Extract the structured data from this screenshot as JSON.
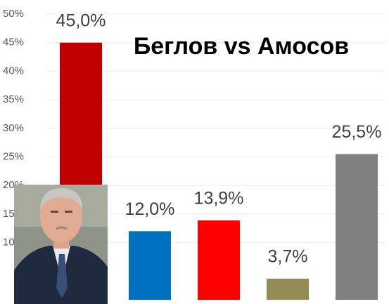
{
  "chart_data": {
    "type": "bar",
    "title": "Беглов vs Амосов",
    "categories": [
      null,
      null,
      null,
      null,
      null
    ],
    "values": [
      45.0,
      12.0,
      13.9,
      3.7,
      25.5
    ],
    "value_labels": [
      "45,0%",
      "12,0%",
      "13,9%",
      "3,7%",
      "25,5%"
    ],
    "colors": [
      "#c00000",
      "#0070c0",
      "#ff0000",
      "#948a54",
      "#808080"
    ],
    "ylim": [
      0,
      50
    ],
    "yticks": [
      {
        "value": 10,
        "label": "10%"
      },
      {
        "value": 15,
        "label": "15%"
      },
      {
        "value": 20,
        "label": "20%"
      },
      {
        "value": 25,
        "label": "25%"
      },
      {
        "value": 30,
        "label": "30%"
      },
      {
        "value": 35,
        "label": "35%"
      },
      {
        "value": 40,
        "label": "40%"
      },
      {
        "value": 45,
        "label": "45%"
      },
      {
        "value": 50,
        "label": "50%"
      }
    ],
    "grid": true
  }
}
